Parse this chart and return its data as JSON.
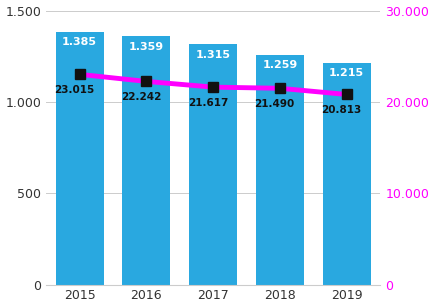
{
  "years": [
    2015,
    2016,
    2017,
    2018,
    2019
  ],
  "bar_values": [
    1385,
    1359,
    1315,
    1259,
    1215
  ],
  "bar_labels": [
    "1.385",
    "1.359",
    "1.315",
    "1.259",
    "1.215"
  ],
  "line_values": [
    23015,
    22242,
    21617,
    21490,
    20813
  ],
  "line_labels": [
    "23.015",
    "22.242",
    "21.617",
    "21.490",
    "20.813"
  ],
  "bar_color": "#29a8e0",
  "line_color": "#ff00ff",
  "marker_color": "#111111",
  "bar_label_color": "#ffffff",
  "line_label_color": "#111111",
  "background_color": "#ffffff",
  "left_ylim": [
    0,
    1500
  ],
  "right_ylim": [
    0,
    30000
  ],
  "left_yticks": [
    0,
    500,
    1000,
    1500
  ],
  "right_yticks": [
    0,
    10000,
    20000,
    30000
  ],
  "grid_color": "#cccccc",
  "spine_color": "#cccccc"
}
